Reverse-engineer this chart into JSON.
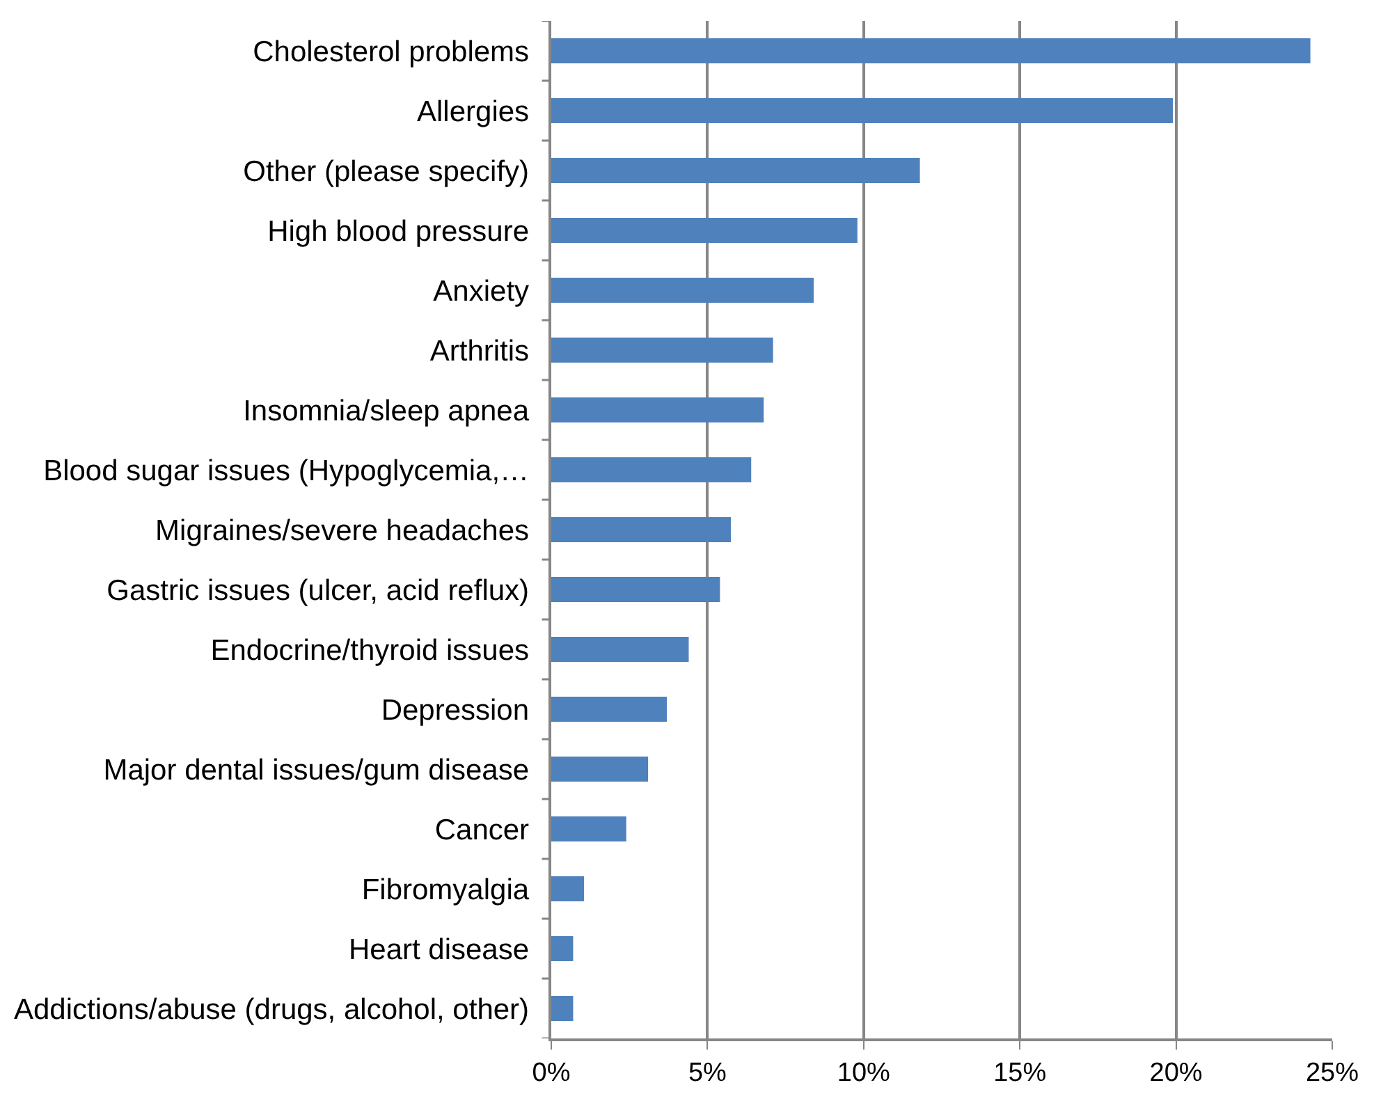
{
  "chart_data": {
    "type": "bar",
    "orientation": "horizontal",
    "categories": [
      "Cholesterol problems",
      "Allergies",
      "Other (please specify)",
      "High blood pressure",
      "Anxiety",
      "Arthritis",
      "Insomnia/sleep apnea",
      "Blood sugar issues (Hypoglycemia,…",
      "Migraines/severe headaches",
      "Gastric issues (ulcer, acid reflux)",
      "Endocrine/thyroid issues",
      "Depression",
      "Major dental issues/gum disease",
      "Cancer",
      "Fibromyalgia",
      "Heart disease",
      "Addictions/abuse (drugs, alcohol, other)"
    ],
    "values": [
      24.3,
      19.9,
      11.8,
      9.8,
      8.4,
      7.1,
      6.8,
      6.4,
      5.75,
      5.4,
      4.4,
      3.7,
      3.1,
      2.4,
      1.05,
      0.7,
      0.7
    ],
    "color": "#4f81bd",
    "xlim": [
      0,
      25
    ],
    "xticks": [
      {
        "value": 0,
        "label": "0%"
      },
      {
        "value": 5,
        "label": "5%"
      },
      {
        "value": 10,
        "label": "10%"
      },
      {
        "value": 15,
        "label": "15%"
      },
      {
        "value": 20,
        "label": "20%"
      },
      {
        "value": 25,
        "label": "25%"
      }
    ],
    "grid": "x"
  }
}
